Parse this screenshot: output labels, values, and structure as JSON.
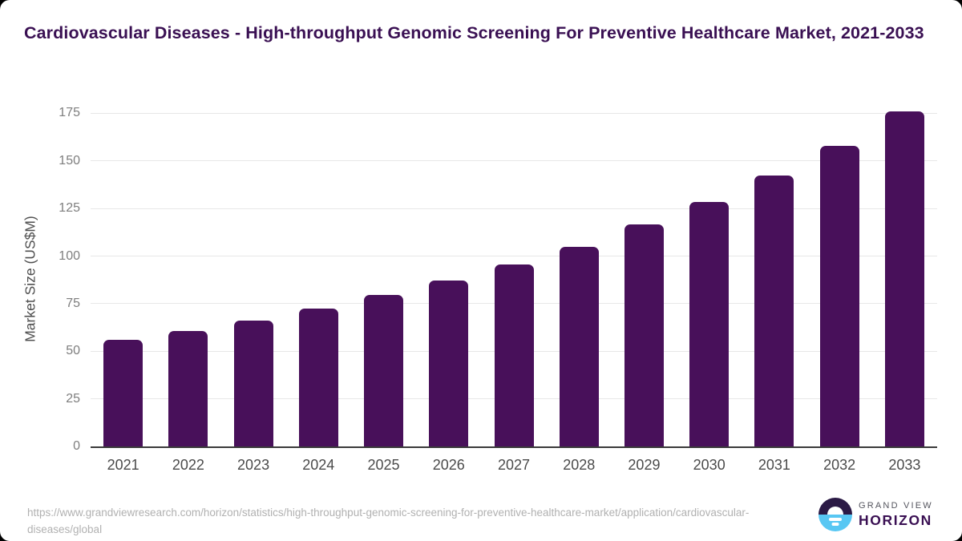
{
  "page": {
    "title": "Cardiovascular Diseases - High-throughput Genomic Screening For Preventive Healthcare Market, 2021-2033"
  },
  "chart_data": {
    "type": "bar",
    "title": "Cardiovascular Diseases - High-throughput Genomic Screening For Preventive Healthcare Market, 2021-2033",
    "categories": [
      "2021",
      "2022",
      "2023",
      "2024",
      "2025",
      "2026",
      "2027",
      "2028",
      "2029",
      "2030",
      "2031",
      "2032",
      "2033"
    ],
    "values": [
      56,
      60.5,
      66,
      72.5,
      79.5,
      87,
      95.5,
      105,
      116.5,
      128.5,
      142.5,
      158,
      176
    ],
    "xlabel": "",
    "ylabel": "Market Size (US$M)",
    "ylim": [
      0,
      175
    ],
    "yticks": [
      0,
      25,
      50,
      75,
      100,
      125,
      150,
      175
    ],
    "grid": true,
    "legend": false,
    "bar_color": "#48105a"
  },
  "colors": {
    "bar": "#48105a",
    "title_text": "#3a1053",
    "axis_line": "#3a3a3a",
    "gridline": "#e7e7e7",
    "tick_label": "#7e7e7e",
    "url_text": "#b1b1b1",
    "logo_dark": "#2b1a45",
    "logo_blue": "#58c7f3"
  },
  "footer": {
    "source_url": "https://www.grandviewresearch.com/horizon/statistics/high-throughput-genomic-screening-for-preventive-healthcare-market/application/cardiovascular-diseases/global",
    "logo": {
      "line1": "GRAND VIEW",
      "line2": "HORIZON"
    }
  }
}
